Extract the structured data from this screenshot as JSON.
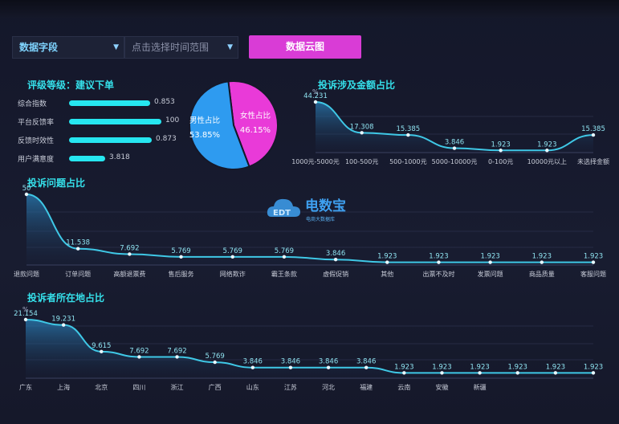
{
  "filters": {
    "field_select": "数据字段",
    "time_range_placeholder": "点击选择时间范围",
    "cloud_button": "数据云图"
  },
  "watermark": {
    "brand": "电数宝",
    "sub": "电商大数据库"
  },
  "colors": {
    "accent": "#26e6f0",
    "female": "#e93ad8",
    "male": "#2e9bf0",
    "button": "#d93cd6",
    "line": "#3fc8e6"
  },
  "chart_data": [
    {
      "type": "bar",
      "title": "评级等级：建议下单",
      "categories": [
        "综合指数",
        "平台反馈率",
        "反馈时效性",
        "用户满意度"
      ],
      "values": [
        0.853,
        100,
        0.873,
        3.818
      ],
      "value_labels": [
        "0.853",
        "100",
        "0.873",
        "3.818"
      ],
      "bar_fill": [
        0.56,
        0.64,
        0.57,
        0.25
      ],
      "orientation": "horizontal"
    },
    {
      "type": "pie",
      "categories": [
        "男性占比",
        "女性占比"
      ],
      "values": [
        53.85,
        46.15
      ],
      "labels": [
        "53.85%",
        "46.15%"
      ]
    },
    {
      "type": "area",
      "title": "投诉涉及金额占比",
      "yunit": "%",
      "categories": [
        "1000元-5000元",
        "100-500元",
        "500-1000元",
        "5000-10000元",
        "0-100元",
        "10000元以上",
        "未选择金额"
      ],
      "values": [
        44.231,
        17.308,
        15.385,
        3.846,
        1.923,
        1.923,
        15.385
      ],
      "value_labels": [
        "44.231",
        "17.308",
        "15.385",
        "3.846",
        "1.923",
        "1.923",
        "15.385"
      ]
    },
    {
      "type": "area",
      "title": "投诉问题占比",
      "categories": [
        "退款问题",
        "订单问题",
        "高额退票费",
        "售后服务",
        "网络欺诈",
        "霸王条款",
        "虚假促销",
        "其他",
        "出票不及时",
        "发票问题",
        "商品质量",
        "客服问题"
      ],
      "values": [
        50,
        11.538,
        7.692,
        5.769,
        5.769,
        5.769,
        3.846,
        1.923,
        1.923,
        1.923,
        1.923,
        1.923
      ],
      "value_labels": [
        "50",
        "11.538",
        "7.692",
        "5.769",
        "5.769",
        "5.769",
        "3.846",
        "1.923",
        "1.923",
        "1.923",
        "1.923",
        "1.923"
      ]
    },
    {
      "type": "area",
      "title": "投诉者所在地占比",
      "yunit": "%",
      "categories": [
        "广东",
        "上海",
        "北京",
        "四川",
        "浙江",
        "广西",
        "山东",
        "江苏",
        "河北",
        "福建",
        "云南",
        "安徽",
        "新疆",
        "",
        "",
        ""
      ],
      "values": [
        21.154,
        19.231,
        9.615,
        7.692,
        7.692,
        5.769,
        3.846,
        3.846,
        3.846,
        3.846,
        1.923,
        1.923,
        1.923,
        1.923,
        1.923,
        1.923
      ],
      "value_labels": [
        "21.154",
        "19.231",
        "9.615",
        "7.692",
        "7.692",
        "5.769",
        "3.846",
        "3.846",
        "3.846",
        "3.846",
        "1.923",
        "1.923",
        "1.923",
        "1.923",
        "1.923",
        "1.923"
      ]
    }
  ]
}
